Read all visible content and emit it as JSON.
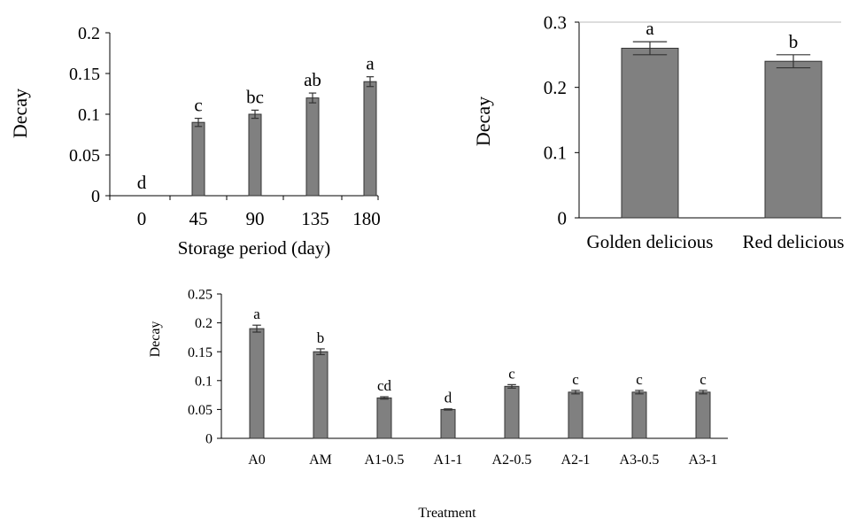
{
  "colors": {
    "bar_fill": "#808080",
    "bar_stroke": "#333333",
    "axis": "#000000",
    "error_bar": "#333333"
  },
  "chart_data": [
    {
      "type": "bar",
      "title": "",
      "xlabel": "Storage period (day)",
      "ylabel": "Decay",
      "ylim": [
        0,
        0.2
      ],
      "yticks": [
        "0",
        "0.05",
        "0.1",
        "0.15",
        "0.2"
      ],
      "grid": false,
      "categories": [
        "0",
        "45",
        "90",
        "135",
        "180"
      ],
      "values": [
        0,
        0.09,
        0.1,
        0.12,
        0.14
      ],
      "errors": [
        0,
        0.005,
        0.005,
        0.006,
        0.006
      ],
      "letters": [
        "d",
        "c",
        "bc",
        "ab",
        "a"
      ]
    },
    {
      "type": "bar",
      "title": "",
      "xlabel": "",
      "ylabel": "Decay",
      "ylim": [
        0,
        0.3
      ],
      "yticks": [
        "0",
        "0.1",
        "0.2",
        "0.3"
      ],
      "grid": false,
      "categories": [
        "Golden delicious",
        "Red delicious"
      ],
      "values": [
        0.26,
        0.24
      ],
      "errors": [
        0.01,
        0.01
      ],
      "letters": [
        "a",
        "b"
      ]
    },
    {
      "type": "bar",
      "title": "",
      "xlabel": "Treatment",
      "ylabel": "Decay",
      "ylim": [
        0,
        0.25
      ],
      "yticks": [
        "0",
        "0.05",
        "0.1",
        "0.15",
        "0.2",
        "0.25"
      ],
      "grid": false,
      "categories": [
        "A0",
        "AM",
        "A1-0.5",
        "A1-1",
        "A2-0.5",
        "A2-1",
        "A3-0.5",
        "A3-1"
      ],
      "values": [
        0.19,
        0.15,
        0.07,
        0.05,
        0.09,
        0.08,
        0.08,
        0.08
      ],
      "errors": [
        0.006,
        0.005,
        0.002,
        0.001,
        0.003,
        0.003,
        0.003,
        0.003
      ],
      "letters": [
        "a",
        "b",
        "cd",
        "d",
        "c",
        "c",
        "c",
        "c"
      ]
    }
  ]
}
